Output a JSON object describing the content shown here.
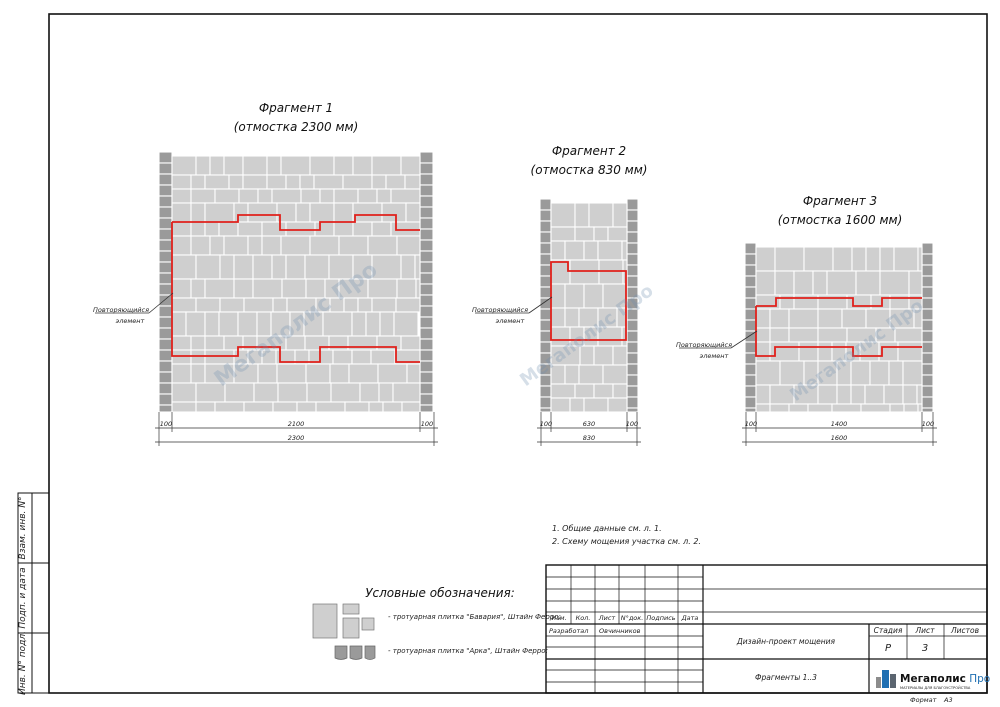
{
  "fragments": [
    {
      "title": "Фрагмент 1",
      "subtitle": "(отмостка 2300 мм)",
      "dim_left": "100",
      "dim_mid": "2100",
      "dim_right": "100",
      "dim_total": "2300"
    },
    {
      "title": "Фрагмент 2",
      "subtitle": "(отмостка 830 мм)",
      "dim_left": "100",
      "dim_mid": "630",
      "dim_right": "100",
      "dim_total": "830"
    },
    {
      "title": "Фрагмент 3",
      "subtitle": "(отмостка 1600 мм)",
      "dim_left": "100",
      "dim_mid": "1400",
      "dim_right": "100",
      "dim_total": "1600"
    }
  ],
  "callout_label_line1": "Повторяющийся",
  "callout_label_line2": "элемент",
  "notes": [
    "1.    Общие данные см. л. 1.",
    "2.    Схему мощения участка см. л. 2."
  ],
  "legend": {
    "title": "Условные обозначения:",
    "item1": "- тротуарная плитка \"Бавария\", Штайн Ферро;",
    "item2": "- тротуарная плитка \"Арка\", Штайн Ферро;"
  },
  "side_stamp": [
    "Взам. инв. N°",
    "Подп. и дата",
    "Инв. N° подл."
  ],
  "title_block": {
    "h_izm": "Изм.",
    "h_kol": "Кол.",
    "h_list": "Лист",
    "h_ndok": "N°док.",
    "h_podp": "Подпись",
    "h_data": "Дата",
    "role": "Разработал",
    "person": "Овчинников",
    "project": "Дизайн-проект мощения",
    "sheet_title": "Фрагменты 1..3",
    "h_stage": "Стадия",
    "h_sheet": "Лист",
    "h_sheets": "Листов",
    "stage": "Р",
    "sheet_no": "3",
    "format_label": "Формат",
    "format_value": "А3"
  },
  "logo": {
    "name_a": "Мегаполис",
    "name_b": " Про",
    "tagline": "МАТЕРИАЛЫ ДЛЯ БЛАГОУСТРОЙСТВА",
    "watermark": "Мегаполис Про"
  },
  "colors": {
    "highlight": "#e0201b",
    "paver": "#cfcfcf",
    "border_brick": "#9a9a9a",
    "logo_blue": "#1f6fb2"
  }
}
